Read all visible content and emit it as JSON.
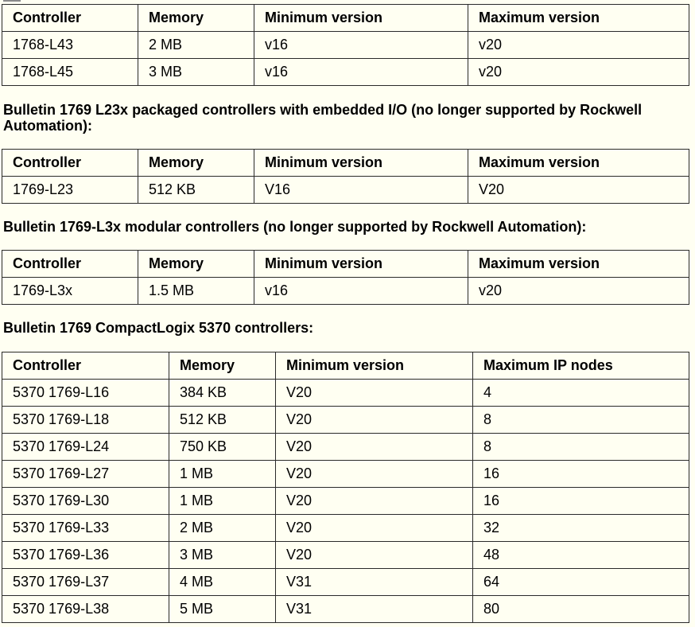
{
  "section1": {
    "headers": [
      "Controller",
      "Memory",
      "Minimum version",
      "Maximum version"
    ],
    "rows": [
      [
        "1768-L43",
        "2 MB",
        "v16",
        "v20"
      ],
      [
        "1768-L45",
        "3 MB",
        "v16",
        "v20"
      ]
    ]
  },
  "section2": {
    "heading": "Bulletin 1769 L23x packaged controllers with embedded I/O (no longer supported by Rockwell Automation):",
    "headers": [
      "Controller",
      "Memory",
      "Minimum version",
      "Maximum version"
    ],
    "rows": [
      [
        "1769-L23",
        "512 KB",
        "V16",
        "V20"
      ]
    ]
  },
  "section3": {
    "heading": "Bulletin 1769-L3x modular controllers (no longer supported by Rockwell Automation):",
    "headers": [
      "Controller",
      "Memory",
      "Minimum version",
      "Maximum version"
    ],
    "rows": [
      [
        "1769-L3x",
        "1.5 MB",
        "v16",
        "v20"
      ]
    ]
  },
  "section4": {
    "heading": "Bulletin 1769 CompactLogix 5370 controllers:",
    "headers": [
      "Controller",
      "Memory",
      "Minimum version",
      "Maximum IP nodes"
    ],
    "rows": [
      [
        "5370 1769-L16",
        "384 KB",
        "V20",
        "4"
      ],
      [
        "5370 1769-L18",
        "512 KB",
        "V20",
        "8"
      ],
      [
        "5370 1769-L24",
        "750 KB",
        "V20",
        "8"
      ],
      [
        "5370 1769-L27",
        "1 MB",
        "V20",
        "16"
      ],
      [
        "5370 1769-L30",
        "1 MB",
        "V20",
        "16"
      ],
      [
        "5370 1769-L33",
        "2 MB",
        "V20",
        "32"
      ],
      [
        "5370 1769-L36",
        "3 MB",
        "V20",
        "48"
      ],
      [
        "5370 1769-L37",
        "4 MB",
        "V31",
        "64"
      ],
      [
        "5370 1769-L38",
        "5 MB",
        "V31",
        "80"
      ]
    ]
  }
}
